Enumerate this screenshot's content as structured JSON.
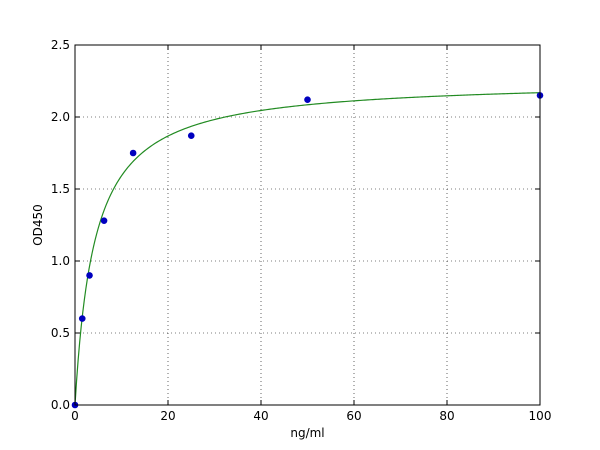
{
  "chart_data": {
    "type": "scatter",
    "title": "",
    "xlabel": "ng/ml",
    "ylabel": "OD450",
    "xlim": [
      0,
      100
    ],
    "ylim": [
      0,
      2.5
    ],
    "x_ticks": [
      0,
      20,
      40,
      60,
      80,
      100
    ],
    "x_tick_labels": [
      "0",
      "20",
      "40",
      "60",
      "80",
      "100"
    ],
    "y_ticks": [
      0.0,
      0.5,
      1.0,
      1.5,
      2.0,
      2.5
    ],
    "y_tick_labels": [
      "0.0",
      "0.5",
      "1.0",
      "1.5",
      "2.0",
      "2.5"
    ],
    "grid": true,
    "series": [
      {
        "kind": "points",
        "color": "#0000bf",
        "x": [
          0,
          1.56,
          3.125,
          6.25,
          12.5,
          25,
          50,
          100
        ],
        "y": [
          0.0,
          0.6,
          0.9,
          1.28,
          1.75,
          1.87,
          2.12,
          2.15
        ]
      },
      {
        "kind": "fit-curve",
        "color": "#228b22",
        "model": "hyperbolic",
        "vmax": 2.26,
        "k": 4.2
      }
    ]
  }
}
